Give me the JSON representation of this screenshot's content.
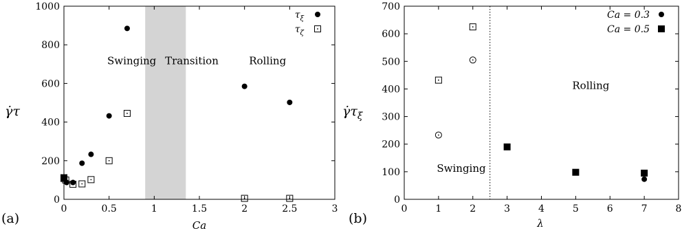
{
  "chart_data": [
    {
      "panel_label": "(a)",
      "type": "scatter",
      "xlabel": "Ca",
      "ylabel": "γ̇τ",
      "xlim": [
        0,
        3
      ],
      "ylim": [
        0,
        1000
      ],
      "xticks": [
        "0",
        "0.5",
        "1",
        "1.5",
        "2",
        "2.5",
        "3"
      ],
      "yticks": [
        "0",
        "200",
        "400",
        "600",
        "800",
        "1000"
      ],
      "legend": "top-right",
      "shaded_region": {
        "x0": 0.9,
        "x1": 1.35,
        "color": "#d4d4d4"
      },
      "annotations": [
        {
          "text": "Swinging",
          "x": 0.48,
          "y": 700
        },
        {
          "text": "Transition",
          "x": 1.12,
          "y": 700
        },
        {
          "text": "Rolling",
          "x": 2.05,
          "y": 700
        }
      ],
      "series": [
        {
          "name": "τξ",
          "marker": "filled-circle",
          "points": [
            [
              0,
              110
            ],
            [
              0.03,
              87
            ],
            [
              0.1,
              87
            ],
            [
              0.2,
              187
            ],
            [
              0.3,
              233
            ],
            [
              0.5,
              432
            ],
            [
              0.7,
              885
            ],
            [
              2.0,
              585
            ],
            [
              2.5,
              502
            ]
          ]
        },
        {
          "name": "τζ",
          "marker": "open-square-dot",
          "points": [
            [
              0,
              108
            ],
            [
              0.02,
              100
            ],
            [
              0.1,
              78
            ],
            [
              0.2,
              80
            ],
            [
              0.3,
              102
            ],
            [
              0.5,
              200
            ],
            [
              0.7,
              445
            ],
            [
              2.0,
              5
            ],
            [
              2.5,
              5
            ]
          ]
        }
      ],
      "extra_marks": [
        {
          "marker": "filled-square",
          "points": [
            [
              0,
              112
            ]
          ]
        }
      ]
    },
    {
      "panel_label": "(b)",
      "type": "scatter",
      "xlabel": "λ",
      "ylabel": "γ̇τξ",
      "xlim": [
        0,
        8
      ],
      "ylim": [
        0,
        700
      ],
      "xticks": [
        "0",
        "1",
        "2",
        "3",
        "4",
        "5",
        "6",
        "7",
        "8"
      ],
      "yticks": [
        "0",
        "100",
        "200",
        "300",
        "400",
        "500",
        "600",
        "700"
      ],
      "legend": "top-right",
      "vline": {
        "x": 2.5,
        "style": "dotted"
      },
      "annotations": [
        {
          "text": "Swinging",
          "x": 0.95,
          "y": 100
        },
        {
          "text": "Rolling",
          "x": 4.9,
          "y": 400
        }
      ],
      "series": [
        {
          "name": "Ca = 0.3",
          "marker": "filled-circle",
          "points": [
            [
              7,
              73
            ]
          ]
        },
        {
          "name": "Ca = 0.5",
          "marker": "filled-square",
          "points": [
            [
              3,
              190
            ],
            [
              5,
              98
            ],
            [
              7,
              95
            ]
          ]
        }
      ],
      "extra_marks": [
        {
          "marker": "open-circle-dot",
          "points": [
            [
              1,
              233
            ],
            [
              2,
              505
            ]
          ]
        },
        {
          "marker": "open-square-dot",
          "points": [
            [
              1,
              432
            ],
            [
              2,
              625
            ]
          ]
        }
      ]
    }
  ]
}
